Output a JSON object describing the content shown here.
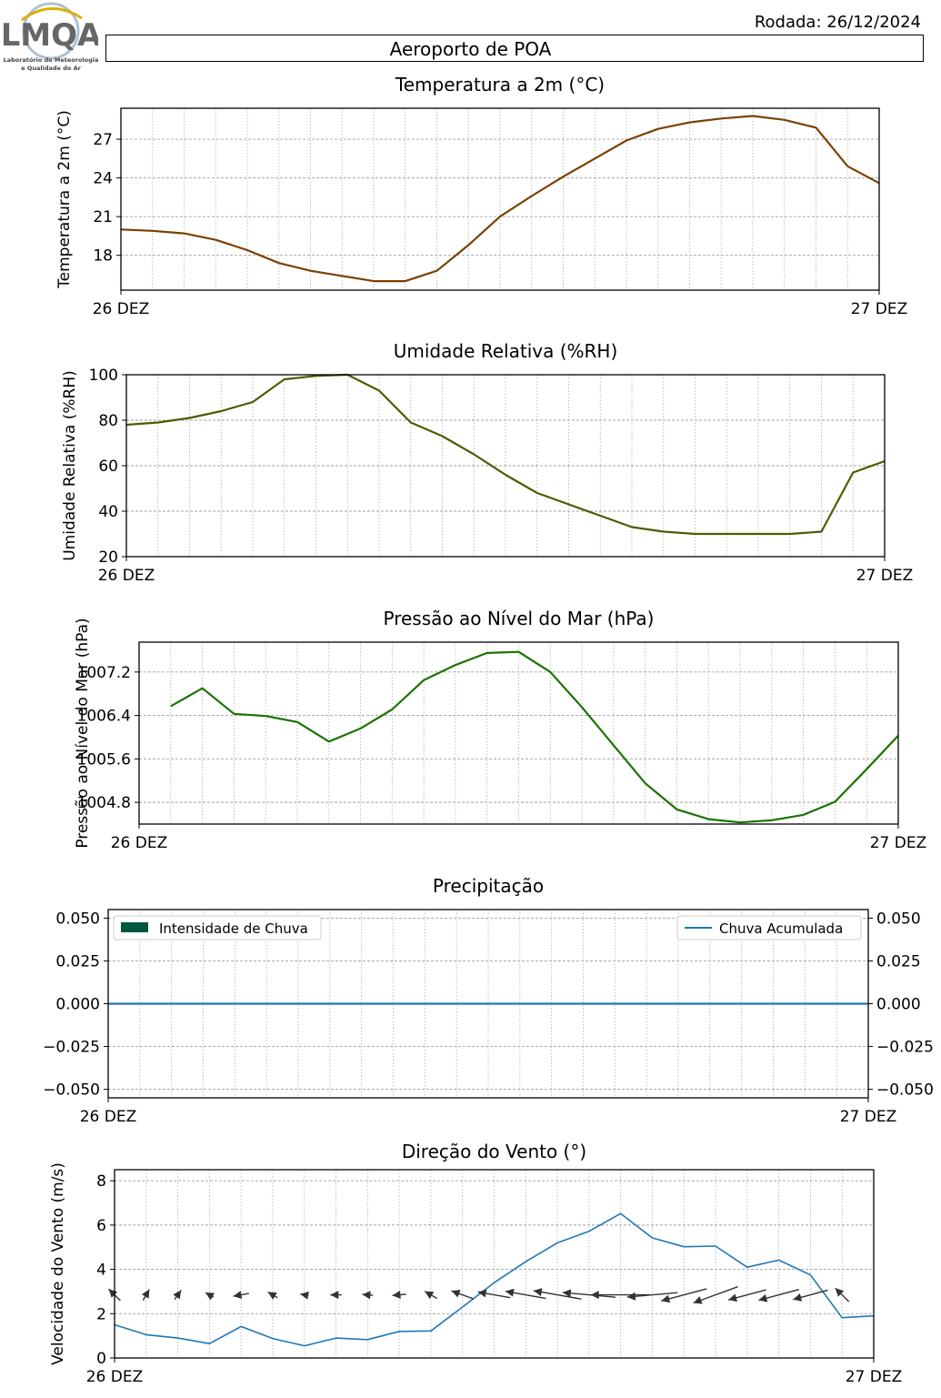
{
  "header": {
    "run_date": "Rodada: 26/12/2024",
    "station": "Aeroporto de POA",
    "logo_text": "LMQA",
    "logo_caption_1": "Laboratório de Meteorologia",
    "logo_caption_2": "e Qualidade do Ar"
  },
  "colors": {
    "temperature": "#7a4100",
    "humidity": "#4f5b00",
    "pressure": "#1a7300",
    "rain_intensity": "#00573f",
    "rain_accumulated": "#1f77b4",
    "wind_speed": "#1f77b4",
    "wind_arrows": "#333333"
  },
  "chart_data": [
    {
      "type": "line",
      "title": "Temperatura a 2m (°C)",
      "ylabel": "Temperatura a 2m (°C)",
      "xlabel": "",
      "x_tick_labels": [
        "26 DEZ",
        "27 DEZ"
      ],
      "x_range_hours": [
        0,
        24
      ],
      "y_ticks": [
        18,
        21,
        24,
        27
      ],
      "ylim": [
        15.3,
        29.4
      ],
      "grid": true,
      "series": [
        {
          "x": [
            0,
            1,
            2,
            3,
            4,
            5,
            6,
            7,
            8,
            9,
            10,
            11,
            12,
            13,
            14,
            15,
            16,
            17,
            18,
            19,
            20,
            21,
            22,
            23,
            24
          ],
          "values": [
            20.0,
            19.9,
            19.7,
            19.2,
            18.4,
            17.4,
            16.8,
            16.4,
            16.0,
            16.0,
            16.8,
            18.8,
            21.0,
            22.6,
            24.1,
            25.5,
            26.9,
            27.8,
            28.3,
            28.6,
            28.8,
            28.5,
            27.9,
            24.9,
            23.6
          ]
        }
      ]
    },
    {
      "type": "line",
      "title": "Umidade Relativa (%RH)",
      "ylabel": "Umidade Relativa (%RH)",
      "xlabel": "",
      "x_tick_labels": [
        "26 DEZ",
        "27 DEZ"
      ],
      "x_range_hours": [
        0,
        24
      ],
      "y_ticks": [
        20,
        40,
        60,
        80,
        100
      ],
      "ylim": [
        20,
        100
      ],
      "grid": true,
      "series": [
        {
          "x": [
            0,
            1,
            2,
            3,
            4,
            5,
            6,
            7,
            8,
            9,
            10,
            11,
            12,
            13,
            14,
            15,
            16,
            17,
            18,
            19,
            20,
            21,
            22,
            23,
            24
          ],
          "values": [
            78,
            79,
            81,
            84,
            88,
            98,
            99.5,
            100,
            93,
            79,
            73,
            65,
            56,
            48,
            43,
            38,
            33,
            31,
            30,
            30,
            30,
            30,
            31,
            57,
            62
          ]
        }
      ]
    },
    {
      "type": "line",
      "title": "Pressão ao Nível do Mar (hPa)",
      "ylabel": "Pressão ao Nível do Mar (hPa)",
      "xlabel": "",
      "x_tick_labels": [
        "26 DEZ",
        "27 DEZ"
      ],
      "x_range_hours": [
        0,
        24
      ],
      "y_ticks": [
        "1004.8",
        "1005.6",
        "1006.4",
        "1007.2"
      ],
      "ylim": [
        1004.4,
        1007.75
      ],
      "grid": true,
      "series": [
        {
          "x": [
            1,
            2,
            3,
            4,
            5,
            6,
            7,
            8,
            9,
            10,
            11,
            12,
            13,
            14,
            15,
            16,
            17,
            18,
            19,
            20,
            21,
            22,
            23,
            24
          ],
          "values": [
            1006.57,
            1006.9,
            1006.43,
            1006.39,
            1006.28,
            1005.92,
            1006.16,
            1006.51,
            1007.05,
            1007.33,
            1007.55,
            1007.57,
            1007.2,
            1006.55,
            1005.85,
            1005.15,
            1004.67,
            1004.49,
            1004.43,
            1004.47,
            1004.57,
            1004.81,
            1005.41,
            1006.03
          ]
        }
      ]
    },
    {
      "type": "bar",
      "title": "Precipitação",
      "ylabel": "",
      "xlabel": "",
      "x_tick_labels": [
        "26 DEZ",
        "27 DEZ"
      ],
      "x_range_hours": [
        0,
        24
      ],
      "y_ticks": [
        "−0.050",
        "−0.025",
        "0.000",
        "0.025",
        "0.050"
      ],
      "ylim": [
        -0.055,
        0.055
      ],
      "grid": true,
      "legend_left": "Intensidade de Chuva",
      "legend_right": "Chuva Acumulada",
      "legend_placement": "top-left / top-right",
      "series": [
        {
          "name": "Intensidade de Chuva",
          "x": [
            0,
            1,
            2,
            3,
            4,
            5,
            6,
            7,
            8,
            9,
            10,
            11,
            12,
            13,
            14,
            15,
            16,
            17,
            18,
            19,
            20,
            21,
            22,
            23,
            24
          ],
          "values": [
            0,
            0,
            0,
            0,
            0,
            0,
            0,
            0,
            0,
            0,
            0,
            0,
            0,
            0,
            0,
            0,
            0,
            0,
            0,
            0,
            0,
            0,
            0,
            0,
            0
          ]
        },
        {
          "name": "Chuva Acumulada",
          "x": [
            0,
            1,
            2,
            3,
            4,
            5,
            6,
            7,
            8,
            9,
            10,
            11,
            12,
            13,
            14,
            15,
            16,
            17,
            18,
            19,
            20,
            21,
            22,
            23,
            24
          ],
          "values": [
            0,
            0,
            0,
            0,
            0,
            0,
            0,
            0,
            0,
            0,
            0,
            0,
            0,
            0,
            0,
            0,
            0,
            0,
            0,
            0,
            0,
            0,
            0,
            0,
            0
          ]
        }
      ]
    },
    {
      "type": "line",
      "title": "Direção do Vento (°)",
      "ylabel": "Velocidade do Vento (m/s)",
      "xlabel": "",
      "x_tick_labels": [
        "26 DEZ",
        "27 DEZ"
      ],
      "x_range_hours": [
        0,
        24
      ],
      "y_ticks": [
        0,
        2,
        4,
        6,
        8
      ],
      "ylim": [
        0,
        8.5
      ],
      "grid": true,
      "series": [
        {
          "name": "Velocidade do Vento",
          "x": [
            0,
            1,
            2,
            3,
            4,
            5,
            6,
            7,
            8,
            9,
            10,
            11,
            12,
            13,
            14,
            15,
            16,
            17,
            18,
            19,
            20,
            21,
            22,
            23,
            24
          ],
          "values": [
            1.5,
            1.05,
            0.9,
            0.65,
            1.42,
            0.88,
            0.55,
            0.9,
            0.83,
            1.2,
            1.22,
            2.3,
            3.4,
            4.35,
            5.2,
            5.72,
            6.52,
            5.42,
            5.02,
            5.05,
            4.1,
            4.42,
            3.75,
            1.82,
            1.9
          ]
        }
      ],
      "wind_arrows": {
        "x": [
          0,
          1,
          2,
          3,
          4,
          5,
          6,
          7,
          8,
          9,
          10,
          11,
          12,
          13,
          14,
          15,
          16,
          17,
          18,
          19,
          20,
          21,
          22,
          23
        ],
        "speed": [
          1.5,
          1.05,
          0.9,
          0.65,
          1.42,
          0.88,
          0.55,
          0.9,
          0.83,
          1.2,
          1.22,
          2.3,
          3.4,
          4.35,
          5.2,
          5.72,
          6.52,
          5.42,
          5.02,
          5.05,
          4.1,
          4.42,
          3.75,
          1.82
        ],
        "direction_deg": [
          135,
          210,
          215,
          120,
          80,
          120,
          100,
          90,
          95,
          85,
          120,
          110,
          100,
          100,
          100,
          95,
          90,
          85,
          75,
          70,
          75,
          75,
          75,
          135
        ]
      }
    }
  ]
}
